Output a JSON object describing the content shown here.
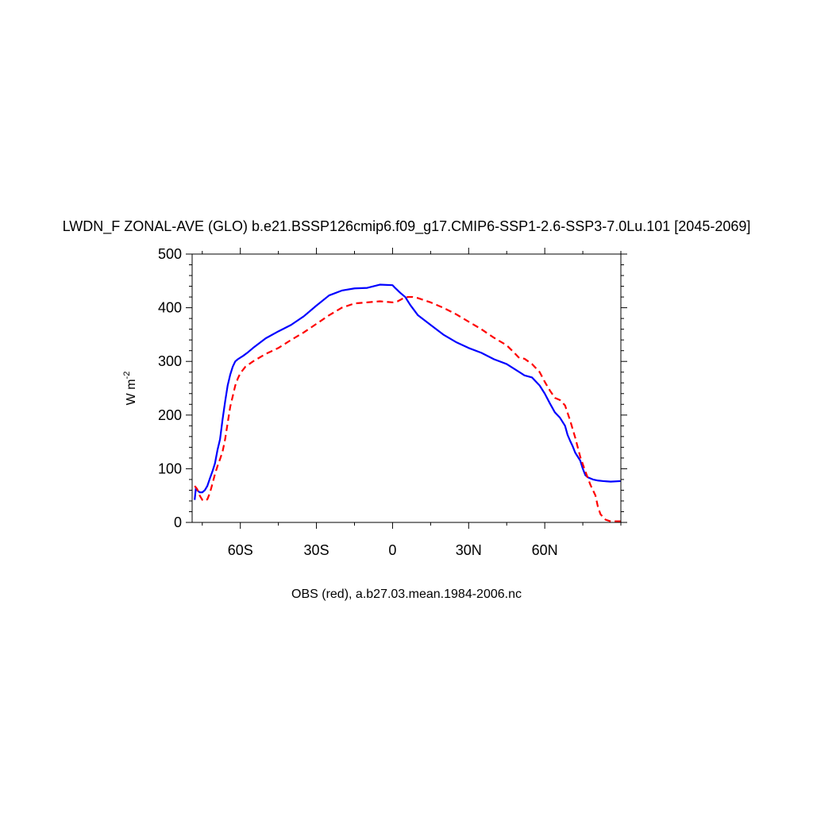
{
  "chart_data": {
    "type": "line",
    "title": "LWDN_F ZONAL-AVE (GLO) b.e21.BSSP126cmip6.f09_g17.CMIP6-SSP1-2.6-SSP3-7.0Lu.101 [2045-2069]",
    "ylabel_main": "W m",
    "ylabel_sup": "-2",
    "caption": "OBS (red), a.b27.03.mean.1984-2006.nc",
    "xlim": [
      -79,
      90
    ],
    "ylim": [
      0,
      500
    ],
    "x_ticks": [
      {
        "value": -60,
        "label": "60S"
      },
      {
        "value": -30,
        "label": "30S"
      },
      {
        "value": 0,
        "label": "0"
      },
      {
        "value": 30,
        "label": "30N"
      },
      {
        "value": 60,
        "label": "60N"
      }
    ],
    "y_ticks": [
      {
        "value": 0,
        "label": "0"
      },
      {
        "value": 100,
        "label": "100"
      },
      {
        "value": 200,
        "label": "200"
      },
      {
        "value": 300,
        "label": "300"
      },
      {
        "value": 400,
        "label": "400"
      },
      {
        "value": 500,
        "label": "500"
      }
    ],
    "grid": false,
    "series": [
      {
        "style": "solid",
        "color": "#0000ff",
        "x": [
          -78,
          -77.5,
          -77,
          -76,
          -75,
          -74,
          -73,
          -72,
          -71,
          -70,
          -69,
          -68,
          -67,
          -66,
          -65,
          -64,
          -63,
          -62,
          -61,
          -60,
          -59,
          -57,
          -55,
          -50,
          -45,
          -40,
          -35,
          -30,
          -25,
          -20,
          -15,
          -10,
          -5,
          0,
          1,
          3,
          5,
          7,
          10,
          15,
          20,
          25,
          30,
          35,
          40,
          45,
          50,
          52,
          55,
          58,
          60,
          62,
          64,
          66,
          68,
          69,
          70,
          71,
          72,
          74,
          75,
          76,
          77,
          79,
          81,
          83,
          86,
          90
        ],
        "y": [
          42,
          65,
          60,
          56,
          56,
          60,
          68,
          82,
          95,
          110,
          135,
          155,
          192,
          225,
          255,
          275,
          290,
          300,
          304,
          307,
          310,
          317,
          325,
          343,
          356,
          368,
          384,
          404,
          423,
          432,
          436,
          437,
          443,
          442,
          437,
          428,
          420,
          405,
          386,
          368,
          350,
          336,
          325,
          316,
          304,
          295,
          280,
          274,
          270,
          255,
          240,
          222,
          205,
          195,
          180,
          163,
          152,
          142,
          130,
          115,
          100,
          88,
          84,
          80,
          78,
          77,
          76,
          77
        ]
      },
      {
        "style": "dashed",
        "color": "#ff0000",
        "x": [
          -78,
          -77,
          -76,
          -75,
          -74,
          -73,
          -72,
          -71,
          -70,
          -69,
          -68,
          -67,
          -66,
          -65,
          -64,
          -63,
          -62,
          -61,
          -60,
          -58,
          -55,
          -50,
          -45,
          -40,
          -35,
          -30,
          -25,
          -20,
          -15,
          -10,
          -5,
          0,
          2,
          4,
          6,
          8,
          10,
          15,
          20,
          25,
          30,
          35,
          40,
          45,
          48,
          50,
          52,
          55,
          58,
          60,
          62,
          64,
          66,
          68,
          70,
          72,
          74,
          76,
          78,
          80,
          81,
          82,
          84,
          86,
          90
        ],
        "y": [
          68,
          62,
          50,
          42,
          40,
          43,
          55,
          72,
          90,
          105,
          118,
          132,
          155,
          185,
          215,
          235,
          255,
          268,
          278,
          290,
          300,
          314,
          325,
          340,
          354,
          370,
          386,
          400,
          408,
          410,
          412,
          410,
          412,
          417,
          420,
          420,
          418,
          410,
          400,
          388,
          374,
          360,
          344,
          330,
          316,
          306,
          305,
          295,
          280,
          262,
          246,
          232,
          228,
          218,
          190,
          158,
          122,
          95,
          70,
          50,
          28,
          15,
          5,
          2,
          2
        ]
      }
    ]
  }
}
